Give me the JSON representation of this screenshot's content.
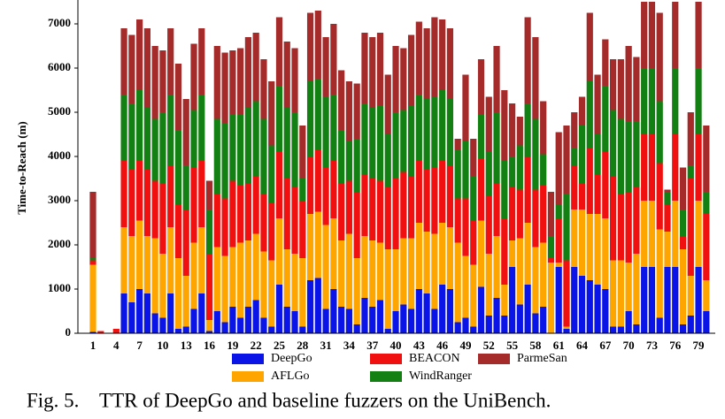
{
  "chart_data": {
    "type": "stacked_bar",
    "ylabel": "Time-to-Reach (m)",
    "caption": "Fig. 5.    TTR of DeepGo and baseline fuzzers on the UniBench.",
    "categories": [
      "1",
      null,
      null,
      "4",
      null,
      null,
      "7",
      null,
      null,
      "10",
      null,
      null,
      "13",
      null,
      null,
      "16",
      null,
      null,
      "19",
      null,
      null,
      "22",
      null,
      null,
      "25",
      null,
      null,
      "28",
      null,
      null,
      "31",
      null,
      null,
      "34",
      null,
      null,
      "37",
      null,
      null,
      "40",
      null,
      null,
      "43",
      null,
      null,
      "46",
      null,
      null,
      "49",
      null,
      null,
      "52",
      null,
      null,
      "55",
      null,
      null,
      "58",
      null,
      null,
      "61",
      null,
      null,
      "64",
      null,
      null,
      "67",
      null,
      null,
      "70",
      null,
      null,
      "73",
      null,
      null,
      "76",
      null,
      null,
      "79",
      null
    ],
    "ylim": [
      0,
      7500
    ],
    "yticks": [
      0,
      1000,
      2000,
      3000,
      4000,
      5000,
      6000,
      7000
    ],
    "legend": "bottom",
    "series": [
      {
        "name": "DeepGo",
        "color": "#0a14e6",
        "values": [
          30,
          0,
          0,
          0,
          900,
          700,
          1000,
          900,
          450,
          350,
          900,
          100,
          150,
          550,
          900,
          50,
          500,
          250,
          600,
          350,
          600,
          750,
          350,
          150,
          1100,
          600,
          500,
          150,
          1200,
          1250,
          550,
          1000,
          600,
          550,
          200,
          800,
          600,
          750,
          100,
          500,
          650,
          550,
          1000,
          900,
          550,
          1100,
          1000,
          250,
          350,
          150,
          1050,
          400,
          800,
          400,
          1500,
          650,
          1100,
          450,
          600,
          0,
          1500,
          100,
          1500,
          1300,
          1200,
          1100,
          1000,
          150,
          150,
          500,
          200,
          1500,
          1500,
          350,
          1500,
          1500,
          200,
          400,
          1500,
          500
        ]
      },
      {
        "name": "AFLGo",
        "color": "#ffa500",
        "values": [
          1520,
          0,
          0,
          0,
          1500,
          1500,
          1550,
          1300,
          1700,
          1450,
          1500,
          1600,
          1150,
          1500,
          1500,
          250,
          1450,
          1500,
          1350,
          1700,
          1500,
          1500,
          1500,
          1500,
          1500,
          1300,
          1300,
          1550,
          1500,
          1500,
          1900,
          1600,
          1500,
          1700,
          1500,
          1400,
          1500,
          1300,
          1800,
          1400,
          1500,
          1600,
          1500,
          1400,
          1700,
          1400,
          1400,
          1800,
          1400,
          1400,
          1500,
          1400,
          1400,
          700,
          600,
          1500,
          1400,
          1500,
          1450,
          1600,
          100,
          50,
          1300,
          1500,
          1500,
          1600,
          1600,
          1500,
          1500,
          1100,
          1600,
          1500,
          1500,
          2000,
          800,
          1500,
          1700,
          900,
          1500,
          700
        ]
      },
      {
        "name": "BEACON",
        "color": "#f01010",
        "values": [
          100,
          50,
          0,
          100,
          1500,
          1500,
          1350,
          1500,
          1300,
          1600,
          1400,
          1200,
          1500,
          1700,
          1500,
          1500,
          1200,
          1300,
          1500,
          1300,
          1300,
          1300,
          1300,
          1300,
          1500,
          1600,
          1500,
          1300,
          1300,
          1400,
          1300,
          1300,
          1300,
          1200,
          1500,
          1400,
          1400,
          1400,
          1400,
          1600,
          1500,
          1400,
          1400,
          1400,
          1500,
          1400,
          1400,
          1000,
          1300,
          1000,
          1400,
          1300,
          1200,
          1500,
          1200,
          1100,
          1500,
          1300,
          1300,
          100,
          1000,
          1500,
          1000,
          600,
          1500,
          900,
          1500,
          1900,
          1500,
          1600,
          1500,
          1500,
          1500,
          1500,
          600,
          1500,
          300,
          2200,
          1500,
          1500
        ]
      },
      {
        "name": "WindRanger",
        "color": "#128012",
        "values": [
          50,
          0,
          0,
          0,
          1500,
          1500,
          1600,
          1400,
          1400,
          1600,
          1600,
          1700,
          1000,
          1300,
          1500,
          1000,
          1700,
          1700,
          1500,
          1600,
          1700,
          1700,
          1700,
          1300,
          1500,
          1600,
          1700,
          500,
          1700,
          1600,
          1600,
          1500,
          1200,
          900,
          1200,
          1600,
          1600,
          1700,
          1200,
          1500,
          1400,
          1600,
          1500,
          1600,
          1600,
          1600,
          1500,
          1100,
          1300,
          1000,
          1000,
          1000,
          1600,
          1300,
          700,
          1000,
          1200,
          1600,
          700,
          500,
          300,
          1500,
          400,
          1300,
          1500,
          900,
          1500,
          1500,
          1700,
          1600,
          1500,
          1500,
          1500,
          1400,
          300,
          1500,
          600,
          300,
          1500,
          500
        ]
      },
      {
        "name": "ParmeSan",
        "color": "#a52a2a",
        "values": [
          1500,
          0,
          0,
          0,
          1500,
          1550,
          1600,
          1800,
          1650,
          1400,
          1500,
          1500,
          1500,
          1500,
          1500,
          650,
          1650,
          1600,
          1450,
          1500,
          1600,
          1550,
          1350,
          1450,
          1550,
          1500,
          1450,
          1200,
          1550,
          1550,
          1350,
          1600,
          1350,
          1350,
          1250,
          1600,
          1600,
          1650,
          1350,
          1500,
          1400,
          1600,
          1650,
          1600,
          1800,
          1600,
          1600,
          250,
          1500,
          850,
          1250,
          1250,
          1500,
          1600,
          1200,
          650,
          1950,
          1850,
          1200,
          1000,
          1650,
          1550,
          800,
          650,
          1550,
          1350,
          1050,
          1150,
          1350,
          1700,
          1450,
          1500,
          1500,
          2000,
          50,
          1500,
          950,
          1200,
          1500,
          1500
        ]
      }
    ]
  }
}
